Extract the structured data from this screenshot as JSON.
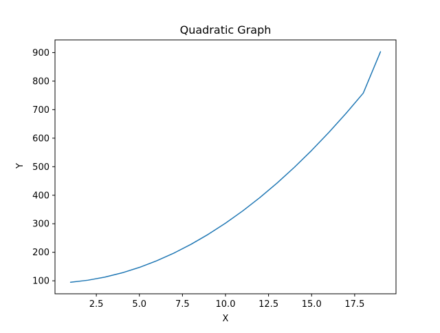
{
  "colors": {
    "series": "#1f77b4",
    "axes": "#000000",
    "background": "#ffffff"
  },
  "chart_data": {
    "type": "line",
    "title": "Quadratic Graph",
    "xlabel": "X",
    "ylabel": "Y",
    "xlim": [
      0.1,
      19.9
    ],
    "ylim": [
      54.5,
      944.5
    ],
    "xticks": [
      2.5,
      5.0,
      7.5,
      10.0,
      12.5,
      15.0,
      17.5
    ],
    "xtick_labels": [
      "2.5",
      "5.0",
      "7.5",
      "10.0",
      "12.5",
      "15.0",
      "17.5"
    ],
    "yticks": [
      100,
      200,
      300,
      400,
      500,
      600,
      700,
      800,
      900
    ],
    "ytick_labels": [
      "100",
      "200",
      "300",
      "400",
      "500",
      "600",
      "700",
      "800",
      "900"
    ],
    "grid": false,
    "series": [
      {
        "x": [
          1,
          2,
          3,
          4,
          5,
          6,
          7,
          8,
          9,
          10,
          11,
          12,
          13,
          14,
          15,
          16,
          17,
          18,
          19
        ],
        "values": [
          95,
          102,
          113,
          128,
          147,
          170,
          197,
          228,
          263,
          302,
          345,
          392,
          443,
          498,
          557,
          620,
          687,
          758,
          903
        ]
      }
    ]
  }
}
